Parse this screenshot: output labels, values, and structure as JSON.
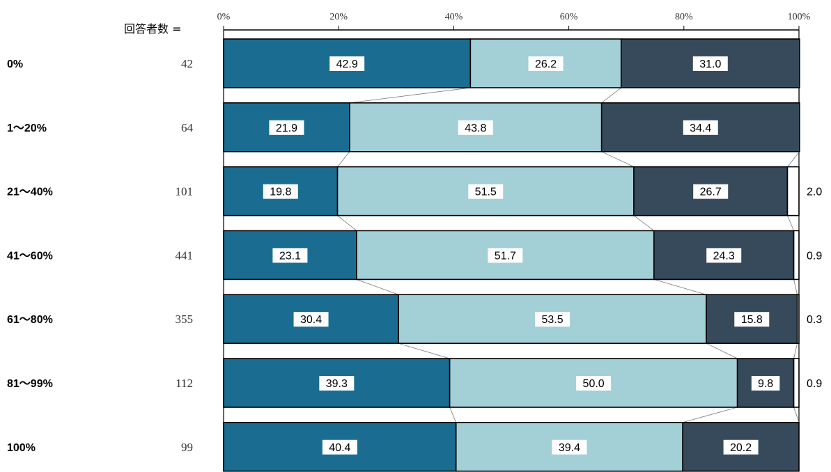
{
  "header": {
    "respondents_label": "回答者数 ="
  },
  "chart_data": {
    "type": "bar",
    "orientation": "horizontal",
    "stacked": true,
    "normalized": true,
    "title": "",
    "xlabel": "",
    "ylabel": "",
    "xlim": [
      0,
      100
    ],
    "x_ticks": [
      "0%",
      "20%",
      "40%",
      "60%",
      "80%",
      "100%"
    ],
    "categories": [
      "0%",
      "1～20%",
      "21～40%",
      "41～60%",
      "61～80%",
      "81～99%",
      "100%"
    ],
    "respondents": [
      "42",
      "64",
      "101",
      "441",
      "355",
      "112",
      "99"
    ],
    "series": [
      {
        "color": "#1a6d91",
        "values": [
          42.9,
          21.9,
          19.8,
          23.1,
          30.4,
          39.3,
          40.4
        ]
      },
      {
        "color": "#a3cfd7",
        "values": [
          26.2,
          43.8,
          51.5,
          51.7,
          53.5,
          50.0,
          39.4
        ]
      },
      {
        "color": "#364a5b",
        "values": [
          31.0,
          34.4,
          26.7,
          24.3,
          15.8,
          9.8,
          20.2
        ]
      },
      {
        "color": "#ffffff",
        "values": [
          0,
          0,
          2.0,
          0.9,
          0.3,
          0.9,
          0
        ]
      }
    ],
    "grid": false,
    "legend": "none",
    "connector_lines": true
  }
}
